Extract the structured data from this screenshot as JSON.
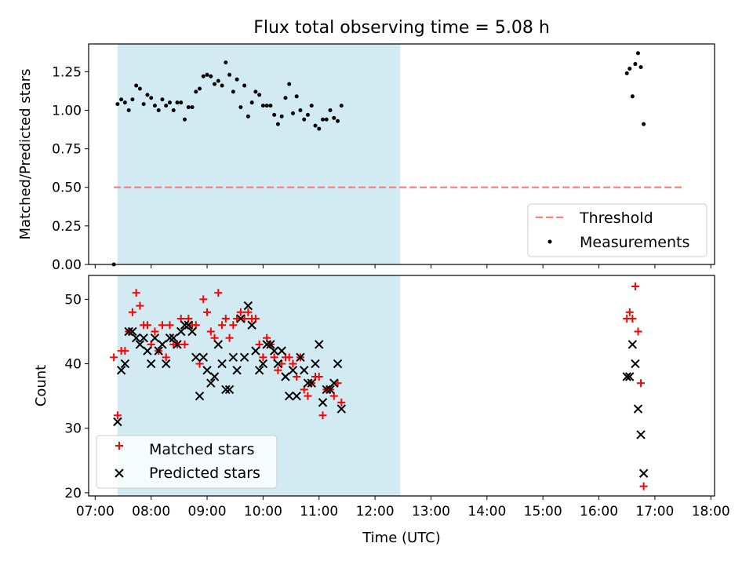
{
  "title": "Flux total observing time = 5.08 h",
  "xlabel": "Time (UTC)",
  "x_ticks": [
    "07:00",
    "08:00",
    "09:00",
    "10:00",
    "11:00",
    "12:00",
    "13:00",
    "14:00",
    "15:00",
    "16:00",
    "17:00",
    "18:00"
  ],
  "colors": {
    "shade": "#add8e6",
    "threshold": "#ff7f7f",
    "matched": "#ff0000",
    "predicted": "#000000",
    "measurements": "#000000"
  },
  "chart_data": [
    {
      "type": "scatter",
      "ylabel": "Matched/Predicted stars",
      "xlim": [
        "06:53",
        "18:04"
      ],
      "ylim": [
        0,
        1.43
      ],
      "y_ticks": [
        "0.00",
        "0.25",
        "0.50",
        "0.75",
        "1.00",
        "1.25"
      ],
      "legend_position": "lower-right",
      "shaded_interval": [
        "07:24",
        "12:27"
      ],
      "threshold": {
        "name": "Threshold",
        "y": 0.5,
        "x_start": "07:20",
        "x_end": "17:32"
      },
      "series": [
        {
          "name": "Measurements",
          "points": [
            [
              "07:20",
              0.0
            ],
            [
              "07:24",
              1.04
            ],
            [
              "07:28",
              1.07
            ],
            [
              "07:32",
              1.05
            ],
            [
              "07:36",
              1.0
            ],
            [
              "07:40",
              1.07
            ],
            [
              "07:44",
              1.16
            ],
            [
              "07:48",
              1.14
            ],
            [
              "07:52",
              1.04
            ],
            [
              "07:56",
              1.1
            ],
            [
              "08:00",
              1.08
            ],
            [
              "08:04",
              1.03
            ],
            [
              "08:08",
              1.0
            ],
            [
              "08:12",
              1.07
            ],
            [
              "08:16",
              1.03
            ],
            [
              "08:20",
              1.05
            ],
            [
              "08:24",
              1.0
            ],
            [
              "08:28",
              1.05
            ],
            [
              "08:32",
              1.05
            ],
            [
              "08:36",
              0.94
            ],
            [
              "08:40",
              1.02
            ],
            [
              "08:44",
              1.02
            ],
            [
              "08:48",
              1.12
            ],
            [
              "08:52",
              1.14
            ],
            [
              "08:56",
              1.22
            ],
            [
              "09:00",
              1.23
            ],
            [
              "09:04",
              1.22
            ],
            [
              "09:08",
              1.17
            ],
            [
              "09:12",
              1.19
            ],
            [
              "09:16",
              1.16
            ],
            [
              "09:20",
              1.31
            ],
            [
              "09:24",
              1.23
            ],
            [
              "09:28",
              1.12
            ],
            [
              "09:32",
              1.2
            ],
            [
              "09:36",
              1.02
            ],
            [
              "09:40",
              1.16
            ],
            [
              "09:44",
              0.96
            ],
            [
              "09:48",
              1.05
            ],
            [
              "09:52",
              1.12
            ],
            [
              "09:56",
              1.1
            ],
            [
              "10:00",
              1.03
            ],
            [
              "10:04",
              1.03
            ],
            [
              "10:08",
              1.03
            ],
            [
              "10:12",
              0.97
            ],
            [
              "10:16",
              0.91
            ],
            [
              "10:20",
              0.96
            ],
            [
              "10:24",
              1.08
            ],
            [
              "10:28",
              1.17
            ],
            [
              "10:32",
              0.98
            ],
            [
              "10:36",
              1.09
            ],
            [
              "10:40",
              1.0
            ],
            [
              "10:44",
              0.94
            ],
            [
              "10:48",
              0.97
            ],
            [
              "10:52",
              1.03
            ],
            [
              "10:56",
              0.9
            ],
            [
              "11:00",
              0.88
            ],
            [
              "11:04",
              0.94
            ],
            [
              "11:08",
              0.94
            ],
            [
              "11:12",
              1.0
            ],
            [
              "11:16",
              0.95
            ],
            [
              "11:20",
              0.93
            ],
            [
              "11:24",
              1.03
            ],
            [
              "16:30",
              1.24
            ],
            [
              "16:33",
              1.27
            ],
            [
              "16:36",
              1.09
            ],
            [
              "16:39",
              1.3
            ],
            [
              "16:42",
              1.37
            ],
            [
              "16:45",
              1.28
            ],
            [
              "16:48",
              0.91
            ]
          ]
        }
      ]
    },
    {
      "type": "scatter",
      "ylabel": "Count",
      "xlim": [
        "06:53",
        "18:04"
      ],
      "ylim": [
        19.5,
        53.7
      ],
      "y_ticks": [
        "20",
        "30",
        "40",
        "50"
      ],
      "legend_position": "lower-left",
      "shaded_interval": [
        "07:24",
        "12:27"
      ],
      "series": [
        {
          "name": "Matched stars",
          "marker": "plus",
          "points": [
            [
              "07:20",
              41
            ],
            [
              "07:24",
              32
            ],
            [
              "07:28",
              42
            ],
            [
              "07:32",
              42
            ],
            [
              "07:36",
              45
            ],
            [
              "07:40",
              48
            ],
            [
              "07:44",
              51
            ],
            [
              "07:48",
              49
            ],
            [
              "07:52",
              46
            ],
            [
              "07:56",
              46
            ],
            [
              "08:00",
              43
            ],
            [
              "08:04",
              45
            ],
            [
              "08:08",
              42
            ],
            [
              "08:12",
              46
            ],
            [
              "08:16",
              41
            ],
            [
              "08:20",
              46
            ],
            [
              "08:24",
              43
            ],
            [
              "08:28",
              43
            ],
            [
              "08:32",
              47
            ],
            [
              "08:36",
              43
            ],
            [
              "08:40",
              47
            ],
            [
              "08:44",
              46
            ],
            [
              "08:48",
              46
            ],
            [
              "08:52",
              40
            ],
            [
              "08:56",
              50
            ],
            [
              "09:00",
              48
            ],
            [
              "09:04",
              45
            ],
            [
              "09:08",
              44
            ],
            [
              "09:12",
              51
            ],
            [
              "09:16",
              46
            ],
            [
              "09:20",
              47
            ],
            [
              "09:24",
              44
            ],
            [
              "09:28",
              46
            ],
            [
              "09:32",
              47
            ],
            [
              "09:36",
              48
            ],
            [
              "09:40",
              47
            ],
            [
              "09:44",
              48
            ],
            [
              "09:48",
              47
            ],
            [
              "09:52",
              47
            ],
            [
              "09:56",
              43
            ],
            [
              "10:00",
              41
            ],
            [
              "10:04",
              44
            ],
            [
              "10:08",
              43
            ],
            [
              "10:12",
              41
            ],
            [
              "10:16",
              39
            ],
            [
              "10:20",
              40
            ],
            [
              "10:24",
              41
            ],
            [
              "10:28",
              41
            ],
            [
              "10:32",
              40
            ],
            [
              "10:36",
              38
            ],
            [
              "10:40",
              41
            ],
            [
              "10:44",
              36
            ],
            [
              "10:48",
              35
            ],
            [
              "10:52",
              37
            ],
            [
              "10:56",
              38
            ],
            [
              "11:00",
              38
            ],
            [
              "11:04",
              32
            ],
            [
              "11:08",
              36
            ],
            [
              "11:12",
              36
            ],
            [
              "11:16",
              35
            ],
            [
              "11:20",
              37
            ],
            [
              "11:24",
              34
            ],
            [
              "16:30",
              47
            ],
            [
              "16:33",
              48
            ],
            [
              "16:36",
              47
            ],
            [
              "16:39",
              52
            ],
            [
              "16:42",
              45
            ],
            [
              "16:45",
              37
            ],
            [
              "16:48",
              21
            ]
          ]
        },
        {
          "name": "Predicted stars",
          "marker": "x",
          "points": [
            [
              "07:24",
              31
            ],
            [
              "07:28",
              39
            ],
            [
              "07:32",
              40
            ],
            [
              "07:36",
              45
            ],
            [
              "07:40",
              45
            ],
            [
              "07:44",
              44
            ],
            [
              "07:48",
              43
            ],
            [
              "07:52",
              44
            ],
            [
              "07:56",
              42
            ],
            [
              "08:00",
              40
            ],
            [
              "08:04",
              44
            ],
            [
              "08:08",
              42
            ],
            [
              "08:12",
              43
            ],
            [
              "08:16",
              40
            ],
            [
              "08:20",
              44
            ],
            [
              "08:24",
              44
            ],
            [
              "08:28",
              43
            ],
            [
              "08:32",
              45
            ],
            [
              "08:36",
              46
            ],
            [
              "08:40",
              46
            ],
            [
              "08:44",
              45
            ],
            [
              "08:48",
              41
            ],
            [
              "08:52",
              35
            ],
            [
              "08:56",
              41
            ],
            [
              "09:00",
              39
            ],
            [
              "09:04",
              37
            ],
            [
              "09:08",
              38
            ],
            [
              "09:12",
              43
            ],
            [
              "09:16",
              40
            ],
            [
              "09:20",
              36
            ],
            [
              "09:24",
              36
            ],
            [
              "09:28",
              41
            ],
            [
              "09:32",
              39
            ],
            [
              "09:36",
              47
            ],
            [
              "09:40",
              41
            ],
            [
              "09:44",
              49
            ],
            [
              "09:48",
              46
            ],
            [
              "09:52",
              42
            ],
            [
              "09:56",
              39
            ],
            [
              "10:00",
              40
            ],
            [
              "10:04",
              43
            ],
            [
              "10:08",
              43
            ],
            [
              "10:12",
              42
            ],
            [
              "10:16",
              40
            ],
            [
              "10:20",
              42
            ],
            [
              "10:24",
              38
            ],
            [
              "10:28",
              35
            ],
            [
              "10:32",
              39
            ],
            [
              "10:36",
              35
            ],
            [
              "10:40",
              41
            ],
            [
              "10:44",
              39
            ],
            [
              "10:48",
              37
            ],
            [
              "10:52",
              37
            ],
            [
              "10:56",
              40
            ],
            [
              "11:00",
              43
            ],
            [
              "11:04",
              34
            ],
            [
              "11:08",
              36
            ],
            [
              "11:12",
              36
            ],
            [
              "11:16",
              37
            ],
            [
              "11:20",
              40
            ],
            [
              "11:24",
              33
            ],
            [
              "16:30",
              38
            ],
            [
              "16:33",
              38
            ],
            [
              "16:36",
              43
            ],
            [
              "16:39",
              40
            ],
            [
              "16:42",
              33
            ],
            [
              "16:45",
              29
            ],
            [
              "16:48",
              23
            ]
          ]
        }
      ]
    }
  ]
}
